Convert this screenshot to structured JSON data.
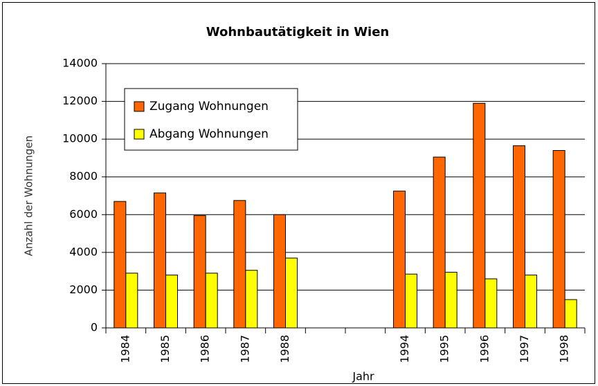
{
  "chart_data": {
    "type": "bar",
    "title": "Wohnbautätigkeit in Wien",
    "x_label": "Jahr",
    "y_label": "Anzahl der Wohnungen",
    "categories": [
      "1984",
      "1985",
      "1986",
      "1987",
      "1988",
      null,
      null,
      "1994",
      "1995",
      "1996",
      "1997",
      "1998"
    ],
    "series": [
      {
        "name": "Zugang Wohnungen",
        "color": "#ff6600",
        "values": [
          6700,
          7150,
          5950,
          6750,
          6000,
          null,
          null,
          7250,
          9050,
          11900,
          9650,
          9400
        ]
      },
      {
        "name": "Abgang Wohnungen",
        "color": "#ffff00",
        "values": [
          2900,
          2800,
          2900,
          3050,
          3700,
          null,
          null,
          2850,
          2950,
          2600,
          2800,
          1500
        ]
      }
    ],
    "ylim": [
      0,
      14000
    ],
    "yticks": [
      0,
      2000,
      4000,
      6000,
      8000,
      10000,
      12000,
      14000
    ],
    "grid": true,
    "legend": "upper left"
  }
}
